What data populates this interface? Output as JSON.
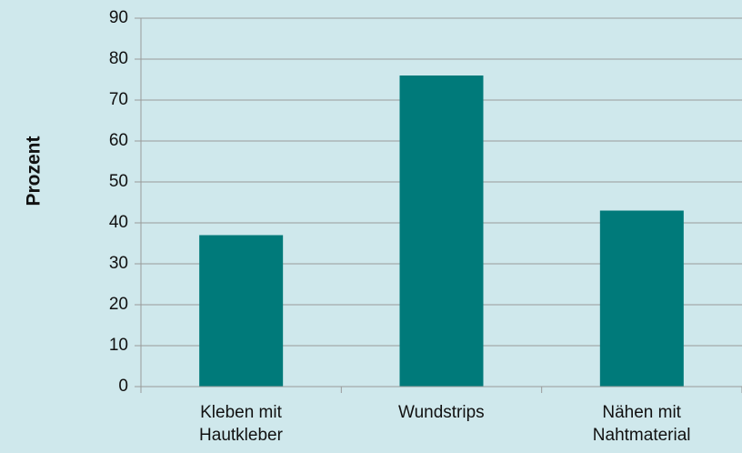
{
  "chart_data": {
    "type": "bar",
    "y_label": "Prozent",
    "categories": [
      "Kleben mit\nHautkleber",
      "Wundstrips",
      "Nähen mit\nNahtmaterial"
    ],
    "values": [
      37,
      76,
      43
    ],
    "color": "#007a7a",
    "ylim": [
      0,
      90
    ],
    "yticks": [
      0,
      10,
      20,
      30,
      40,
      50,
      60,
      70,
      80,
      90
    ],
    "grid": true
  }
}
